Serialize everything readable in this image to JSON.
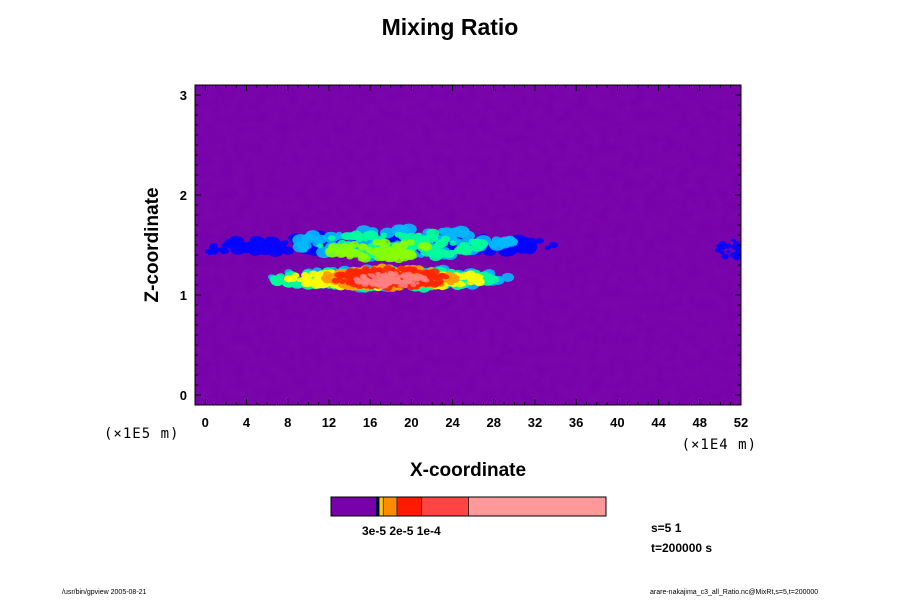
{
  "chart_data": {
    "type": "heatmap",
    "title": "Mixing Ratio",
    "xlabel": "X-coordinate",
    "ylabel": "Z-coordinate",
    "x_unit_label": "(×1E4 m)",
    "y_unit_label": "(×1E5 m)",
    "xlim": [
      -1,
      52
    ],
    "ylim": [
      -0.1,
      3.1
    ],
    "x_ticks": [
      "0",
      "4",
      "8",
      "12",
      "16",
      "20",
      "24",
      "28",
      "32",
      "36",
      "40",
      "44",
      "48",
      "52"
    ],
    "y_ticks": [
      "0",
      "1",
      "2",
      "3"
    ],
    "background_color": "#7700aa",
    "grid": false,
    "colorbar": {
      "colors": [
        "#7700aa",
        "#000080",
        "#ffcc00",
        "#ff8c00",
        "#ff1a00",
        "#ff4444",
        "#ff9999"
      ],
      "label_text": "3e-5 2e-5 1e-4"
    },
    "field_colors": [
      "#0000ff",
      "#00b8ff",
      "#00ff99",
      "#88ff00",
      "#ffff00",
      "#ff9900",
      "#ff2200",
      "#ff8080"
    ]
  },
  "info": {
    "s_line": "s=5 1",
    "t_line": "t=200000 s"
  },
  "footer": {
    "left": "/usr/bin/gpview 2005-08-21",
    "right": "arare-nakajima_c3_all_Ratio.nc@MixRt,s=5,t=200000"
  }
}
